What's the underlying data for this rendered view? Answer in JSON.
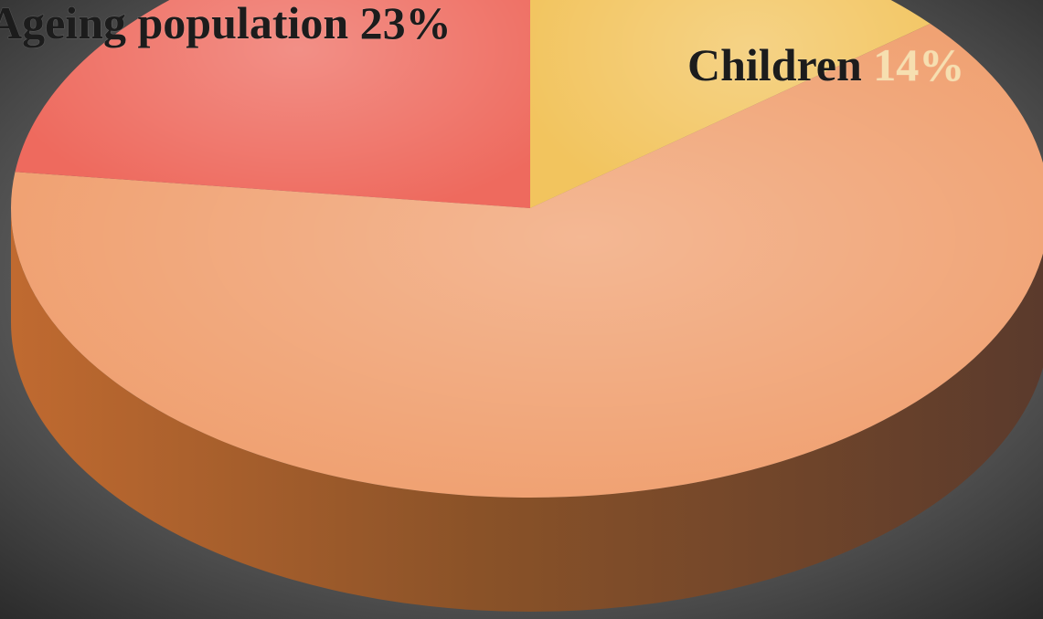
{
  "chart_data": {
    "type": "pie",
    "categories": [
      "Children",
      null,
      "Ageing population"
    ],
    "values": [
      14,
      63,
      23
    ],
    "value_labels": [
      "14%",
      null,
      "23%"
    ],
    "colors": [
      "#f2c45e",
      "#f0a070",
      "#ee6a5e"
    ]
  }
}
